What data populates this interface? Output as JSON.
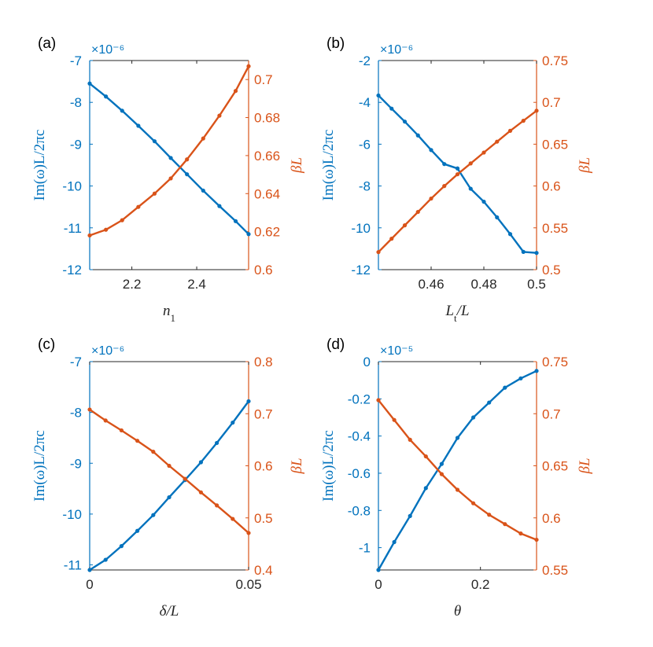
{
  "colors": {
    "left": "#0072BD",
    "right": "#D95319",
    "axis": "#262626",
    "text": "#000000"
  },
  "chart_data": [
    {
      "panel_label": "(a)",
      "type": "line",
      "xlabel_main": "n",
      "xlabel_sub": "1",
      "xlim": [
        2.07,
        2.56
      ],
      "xticks": [
        2.2,
        2.4
      ],
      "xticklabels": [
        "2.2",
        "2.4"
      ],
      "ylabel_left": "Im(ω)L/2πc",
      "ylabel_right": "βL",
      "ylim_left": [
        -12,
        -7
      ],
      "yticks_left": [
        -12,
        -11,
        -10,
        -9,
        -8,
        -7
      ],
      "yticklabels_left": [
        "-12",
        "-11",
        "-10",
        "-9",
        "-8",
        "-7"
      ],
      "exponent_label": "×10⁻⁶",
      "ylim_right": [
        0.6,
        0.71
      ],
      "yticks_right": [
        0.6,
        0.62,
        0.64,
        0.66,
        0.68,
        0.7
      ],
      "yticklabels_right": [
        "0.6",
        "0.62",
        "0.64",
        "0.66",
        "0.68",
        "0.7"
      ],
      "series": [
        {
          "axis": "left",
          "x": [
            2.07,
            2.12,
            2.17,
            2.22,
            2.27,
            2.32,
            2.37,
            2.42,
            2.47,
            2.52,
            2.56
          ],
          "y": [
            -7.55,
            -7.86,
            -8.2,
            -8.56,
            -8.93,
            -9.33,
            -9.72,
            -10.11,
            -10.48,
            -10.84,
            -11.15
          ]
        },
        {
          "axis": "right",
          "x": [
            2.07,
            2.12,
            2.17,
            2.22,
            2.27,
            2.32,
            2.37,
            2.42,
            2.47,
            2.52,
            2.56
          ],
          "y": [
            0.618,
            0.621,
            0.626,
            0.633,
            0.64,
            0.648,
            0.658,
            0.669,
            0.681,
            0.694,
            0.707
          ]
        }
      ]
    },
    {
      "panel_label": "(b)",
      "type": "line",
      "xlabel_main": "L",
      "xlabel_sub": "t",
      "xlabel_tail": "/L",
      "xlim": [
        0.44,
        0.5
      ],
      "xticks": [
        0.46,
        0.48,
        0.5
      ],
      "xticklabels": [
        "0.46",
        "0.48",
        "0.5"
      ],
      "ylabel_left": "Im(ω)L/2πc",
      "ylabel_right": "βL",
      "ylim_left": [
        -12,
        -2
      ],
      "yticks_left": [
        -12,
        -10,
        -8,
        -6,
        -4,
        -2
      ],
      "yticklabels_left": [
        "-12",
        "-10",
        "-8",
        "-6",
        "-4",
        "-2"
      ],
      "exponent_label": "×10⁻⁶",
      "ylim_right": [
        0.5,
        0.75
      ],
      "yticks_right": [
        0.5,
        0.55,
        0.6,
        0.65,
        0.7,
        0.75
      ],
      "yticklabels_right": [
        "0.5",
        "0.55",
        "0.6",
        "0.65",
        "0.7",
        "0.75"
      ],
      "series": [
        {
          "axis": "left",
          "x": [
            0.44,
            0.445,
            0.45,
            0.455,
            0.46,
            0.465,
            0.47,
            0.475,
            0.48,
            0.485,
            0.49,
            0.495,
            0.5
          ],
          "y": [
            -3.67,
            -4.3,
            -4.92,
            -5.58,
            -6.28,
            -6.95,
            -7.16,
            -8.13,
            -8.75,
            -9.5,
            -10.3,
            -11.15,
            -11.2
          ]
        },
        {
          "axis": "right",
          "x": [
            0.44,
            0.445,
            0.45,
            0.455,
            0.46,
            0.465,
            0.47,
            0.475,
            0.48,
            0.485,
            0.49,
            0.495,
            0.5
          ],
          "y": [
            0.521,
            0.537,
            0.553,
            0.569,
            0.585,
            0.6,
            0.614,
            0.627,
            0.64,
            0.653,
            0.666,
            0.678,
            0.69
          ]
        }
      ]
    },
    {
      "panel_label": "(c)",
      "type": "line",
      "xlabel_main": "δ/L",
      "xlim": [
        0,
        0.05
      ],
      "xticks": [
        0,
        0.05
      ],
      "xticklabels": [
        "0",
        "0.05"
      ],
      "ylabel_left": "Im(ω)L/2πc",
      "ylabel_right": "βL",
      "ylim_left": [
        -11.1,
        -7
      ],
      "yticks_left": [
        -11,
        -10,
        -9,
        -8,
        -7
      ],
      "yticklabels_left": [
        "-11",
        "-10",
        "-9",
        "-8",
        "-7"
      ],
      "exponent_label": "×10⁻⁶",
      "ylim_right": [
        0.4,
        0.8
      ],
      "yticks_right": [
        0.4,
        0.5,
        0.6,
        0.7,
        0.8
      ],
      "yticklabels_right": [
        "0.4",
        "0.5",
        "0.6",
        "0.7",
        "0.8"
      ],
      "series": [
        {
          "axis": "left",
          "x": [
            0,
            0.005,
            0.01,
            0.015,
            0.02,
            0.025,
            0.03,
            0.035,
            0.04,
            0.045,
            0.05
          ],
          "y": [
            -11.1,
            -10.9,
            -10.63,
            -10.33,
            -10.02,
            -9.67,
            -9.33,
            -8.98,
            -8.6,
            -8.2,
            -7.78
          ]
        },
        {
          "axis": "right",
          "x": [
            0,
            0.005,
            0.01,
            0.015,
            0.02,
            0.025,
            0.03,
            0.035,
            0.04,
            0.045,
            0.05
          ],
          "y": [
            0.708,
            0.687,
            0.668,
            0.648,
            0.627,
            0.6,
            0.575,
            0.549,
            0.524,
            0.498,
            0.471
          ]
        }
      ]
    },
    {
      "panel_label": "(d)",
      "type": "line",
      "xlabel_main": "θ",
      "xlim": [
        0,
        0.31
      ],
      "xticks": [
        0,
        0.2
      ],
      "xticklabels": [
        "0",
        "0.2"
      ],
      "ylabel_left": "Im(ω)L/2πc",
      "ylabel_right": "βL",
      "ylim_left": [
        -1.12,
        0
      ],
      "yticks_left": [
        -1,
        -0.8,
        -0.6,
        -0.4,
        -0.2,
        0
      ],
      "yticklabels_left": [
        "-1",
        "-0.8",
        "-0.6",
        "-0.4",
        "-0.2",
        "0"
      ],
      "exponent_label": "×10⁻⁵",
      "ylim_right": [
        0.55,
        0.75
      ],
      "yticks_right": [
        0.55,
        0.6,
        0.65,
        0.7,
        0.75
      ],
      "yticklabels_right": [
        "0.55",
        "0.6",
        "0.65",
        "0.7",
        "0.75"
      ],
      "series": [
        {
          "axis": "left",
          "x": [
            0,
            0.031,
            0.062,
            0.093,
            0.124,
            0.155,
            0.186,
            0.217,
            0.248,
            0.279,
            0.31
          ],
          "y": [
            -1.12,
            -0.97,
            -0.83,
            -0.68,
            -0.55,
            -0.41,
            -0.3,
            -0.22,
            -0.14,
            -0.09,
            -0.05
          ]
        },
        {
          "axis": "right",
          "x": [
            0,
            0.031,
            0.062,
            0.093,
            0.124,
            0.155,
            0.186,
            0.217,
            0.248,
            0.279,
            0.31
          ],
          "y": [
            0.713,
            0.694,
            0.675,
            0.659,
            0.642,
            0.627,
            0.614,
            0.603,
            0.594,
            0.585,
            0.579
          ]
        }
      ]
    }
  ]
}
